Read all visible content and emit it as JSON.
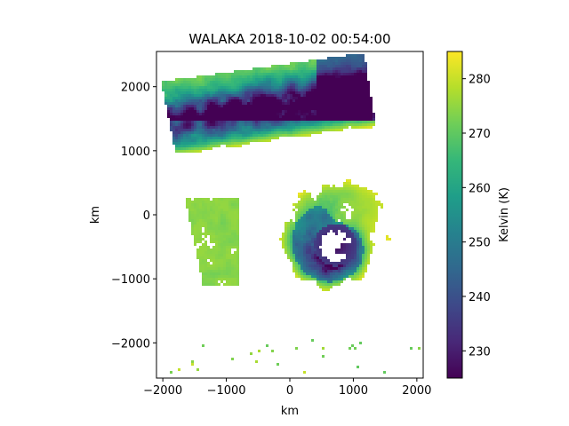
{
  "chart_data": {
    "type": "heatmap",
    "title": "WALAKA 2018-10-02 00:54:00",
    "xlabel": "km",
    "ylabel": "km",
    "xlim": [
      -2100,
      2100
    ],
    "ylim": [
      -2550,
      2550
    ],
    "x_ticks": [
      -2000,
      -1000,
      0,
      1000,
      2000
    ],
    "y_ticks": [
      -2000,
      -1000,
      0,
      1000,
      2000
    ],
    "x_tick_labels": [
      "−2000",
      "−1000",
      "0",
      "1000",
      "2000"
    ],
    "y_tick_labels": [
      "−2000",
      "−1000",
      "0",
      "1000",
      "2000"
    ],
    "colorbar": {
      "label": "Kelvin (K)",
      "range": [
        225,
        285
      ],
      "ticks": [
        230,
        240,
        250,
        260,
        270,
        280
      ],
      "tick_labels": [
        "230",
        "240",
        "250",
        "260",
        "270",
        "280"
      ],
      "colormap": "viridis",
      "colors": [
        "#440154",
        "#482878",
        "#3e4989",
        "#31688e",
        "#26828e",
        "#1f9e89",
        "#35b779",
        "#6ece58",
        "#b5de2b",
        "#fde725"
      ]
    },
    "features": [
      {
        "kind": "cyclone_eyewall",
        "x_km": 700,
        "y_km": -450,
        "radius_km": 350,
        "temp_k": 226
      },
      {
        "kind": "spiral_band",
        "x_km": 600,
        "y_km": 0,
        "temp_k": 240
      },
      {
        "kind": "cloud_band_north",
        "x_km": 300,
        "y_km": 1700,
        "temp_k": 235
      },
      {
        "kind": "warm_fragments_west",
        "x_km": -1300,
        "y_km": -300,
        "temp_k": 275
      }
    ],
    "grid": false,
    "legend": "colorbar-right"
  }
}
